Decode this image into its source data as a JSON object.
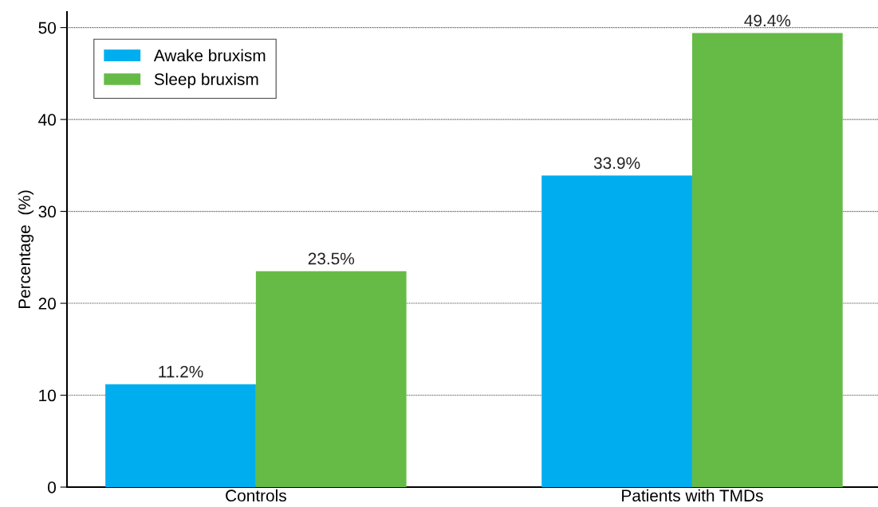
{
  "chart_data": {
    "type": "bar",
    "ylabel": "Percentage  (%)",
    "categories": [
      "Controls",
      "Patients with TMDs"
    ],
    "series": [
      {
        "name": "Awake bruxism",
        "color": "#00aeef",
        "values": [
          11.2,
          33.9
        ],
        "value_labels": [
          "11.2%",
          "33.9%"
        ]
      },
      {
        "name": "Sleep bruxism",
        "color": "#66bb46",
        "values": [
          23.5,
          49.4
        ],
        "value_labels": [
          "23.5%",
          "49.4%"
        ]
      }
    ],
    "ylim": [
      0,
      51.7
    ],
    "yticks": [
      0,
      10,
      20,
      30,
      40,
      50
    ],
    "grid": "y",
    "legend": "top left"
  }
}
